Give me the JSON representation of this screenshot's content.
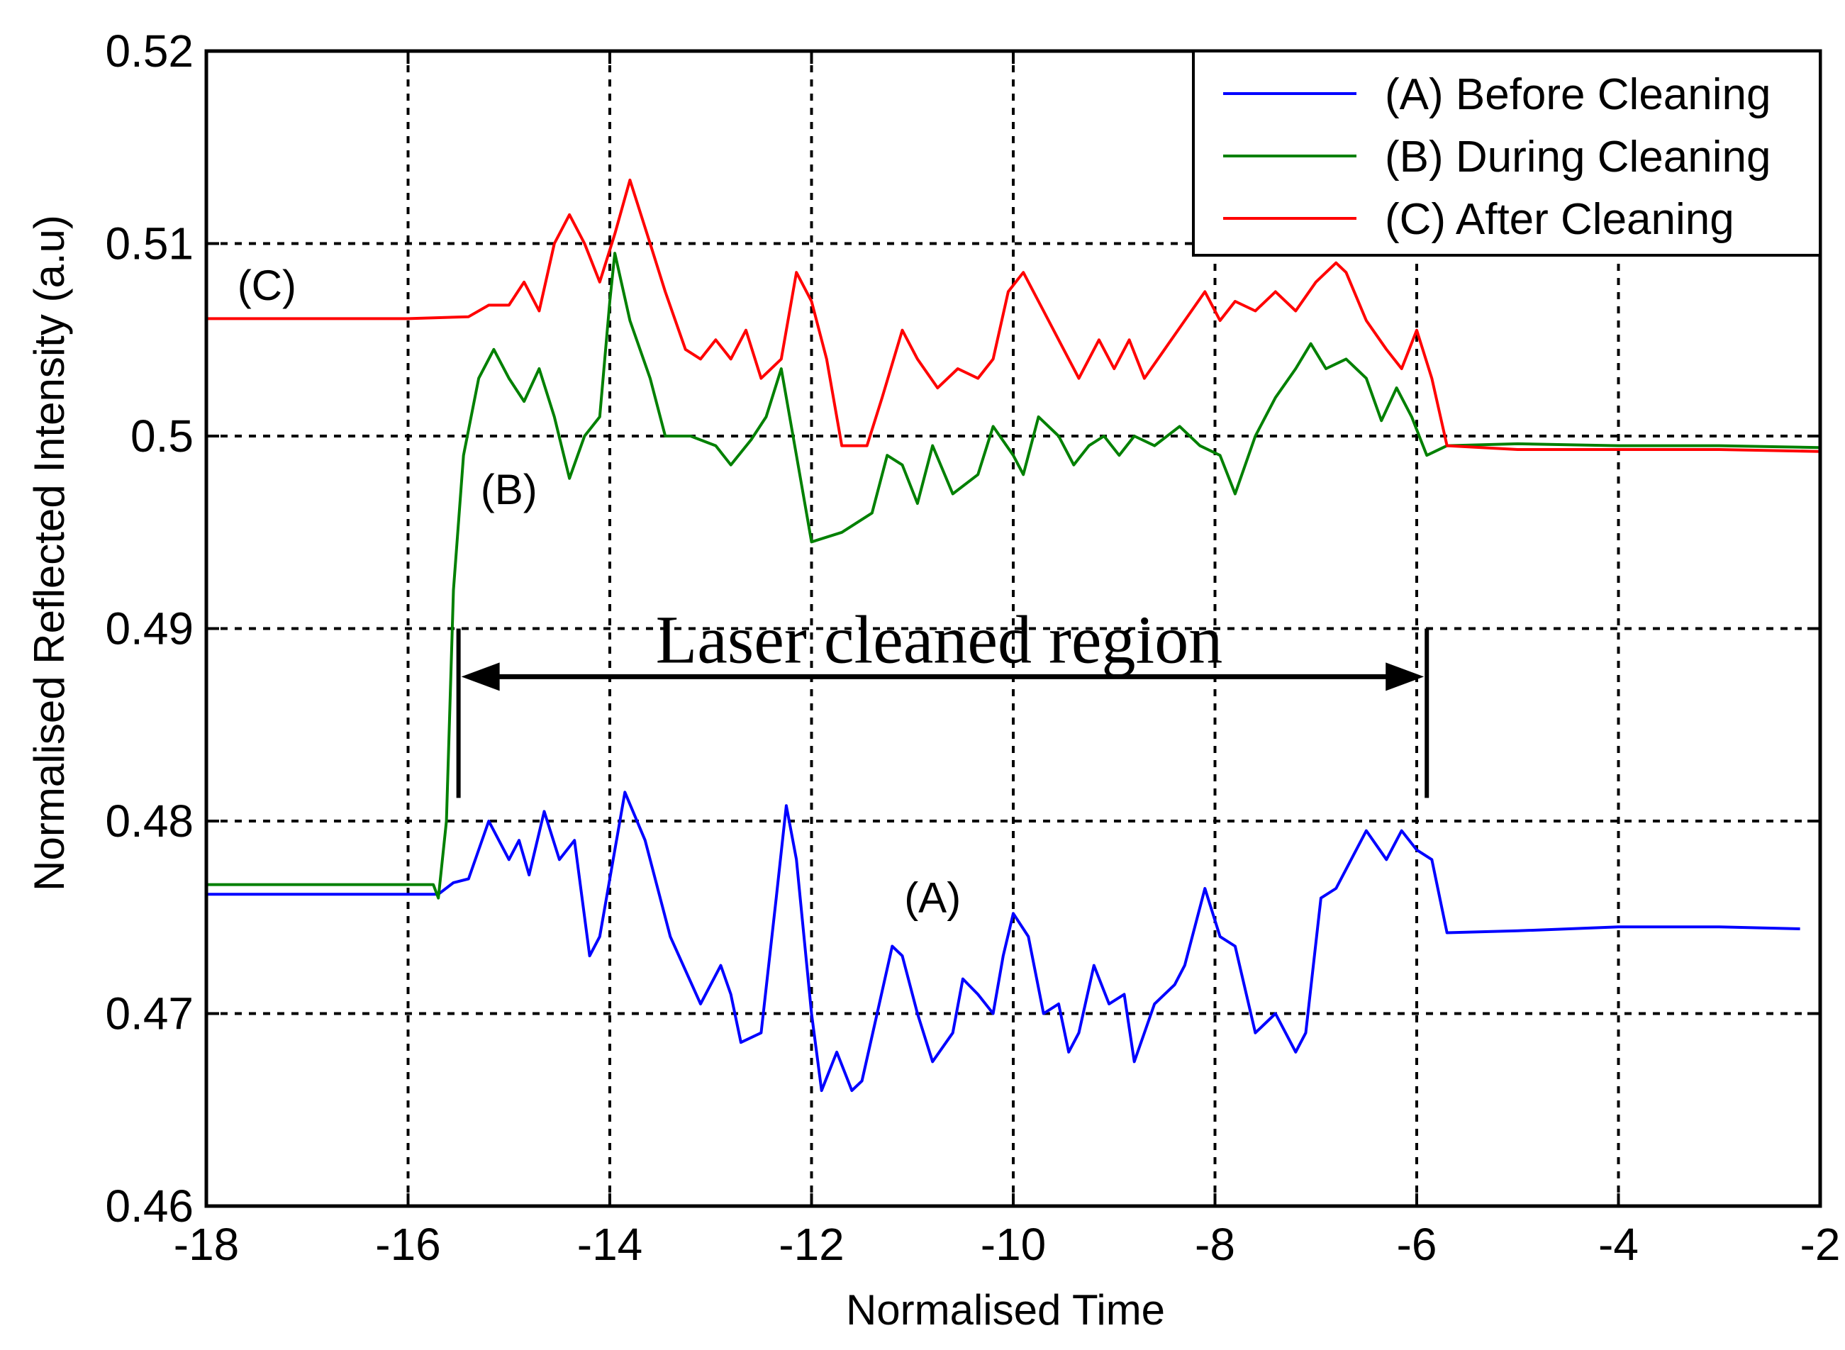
{
  "chart_data": {
    "type": "line",
    "title": "",
    "xlabel": "Normalised Time",
    "ylabel": "Normalised Reflected Intensity  (a.u)",
    "xlim": [
      -18,
      -2
    ],
    "ylim": [
      0.46,
      0.52
    ],
    "grid": true,
    "legend_position": "top-right",
    "x_ticks": [
      -18,
      -16,
      -14,
      -12,
      -10,
      -8,
      -6,
      -4,
      -2
    ],
    "x_tick_labels": [
      "-18",
      "-16",
      "-14",
      "-12",
      "-10",
      "-8",
      "-6",
      "-4",
      "-2"
    ],
    "y_ticks": [
      0.46,
      0.47,
      0.48,
      0.49,
      0.5,
      0.51,
      0.52
    ],
    "y_tick_labels": [
      "0.46",
      "0.47",
      "0.48",
      "0.49",
      "0.5",
      "0.51",
      "0.52"
    ],
    "series": [
      {
        "name": "(A) Before Cleaning",
        "tag": "(A)",
        "color": "#0000ff",
        "points": [
          [
            -18,
            0.4762
          ],
          [
            -17,
            0.4762
          ],
          [
            -16,
            0.4762
          ],
          [
            -15.7,
            0.4762
          ],
          [
            -15.55,
            0.4768
          ],
          [
            -15.4,
            0.477
          ],
          [
            -15.2,
            0.48
          ],
          [
            -15.0,
            0.478
          ],
          [
            -14.9,
            0.479
          ],
          [
            -14.8,
            0.4772
          ],
          [
            -14.65,
            0.4805
          ],
          [
            -14.5,
            0.478
          ],
          [
            -14.35,
            0.479
          ],
          [
            -14.2,
            0.473
          ],
          [
            -14.1,
            0.474
          ],
          [
            -14.0,
            0.477
          ],
          [
            -13.85,
            0.4815
          ],
          [
            -13.65,
            0.479
          ],
          [
            -13.4,
            0.474
          ],
          [
            -13.1,
            0.4705
          ],
          [
            -12.9,
            0.4725
          ],
          [
            -12.8,
            0.471
          ],
          [
            -12.7,
            0.4685
          ],
          [
            -12.5,
            0.469
          ],
          [
            -12.35,
            0.476
          ],
          [
            -12.25,
            0.4808
          ],
          [
            -12.15,
            0.478
          ],
          [
            -12.0,
            0.47
          ],
          [
            -11.9,
            0.466
          ],
          [
            -11.75,
            0.468
          ],
          [
            -11.6,
            0.466
          ],
          [
            -11.5,
            0.4665
          ],
          [
            -11.35,
            0.47
          ],
          [
            -11.2,
            0.4735
          ],
          [
            -11.1,
            0.473
          ],
          [
            -10.95,
            0.47
          ],
          [
            -10.8,
            0.4675
          ],
          [
            -10.6,
            0.469
          ],
          [
            -10.5,
            0.4718
          ],
          [
            -10.35,
            0.471
          ],
          [
            -10.2,
            0.47
          ],
          [
            -10.1,
            0.473
          ],
          [
            -10.0,
            0.4752
          ],
          [
            -9.85,
            0.474
          ],
          [
            -9.7,
            0.47
          ],
          [
            -9.55,
            0.4705
          ],
          [
            -9.45,
            0.468
          ],
          [
            -9.35,
            0.469
          ],
          [
            -9.2,
            0.4725
          ],
          [
            -9.05,
            0.4705
          ],
          [
            -8.9,
            0.471
          ],
          [
            -8.8,
            0.4675
          ],
          [
            -8.6,
            0.4705
          ],
          [
            -8.4,
            0.4715
          ],
          [
            -8.3,
            0.4725
          ],
          [
            -8.1,
            0.4765
          ],
          [
            -7.95,
            0.474
          ],
          [
            -7.8,
            0.4735
          ],
          [
            -7.6,
            0.469
          ],
          [
            -7.4,
            0.47
          ],
          [
            -7.2,
            0.468
          ],
          [
            -7.1,
            0.469
          ],
          [
            -6.95,
            0.476
          ],
          [
            -6.8,
            0.4765
          ],
          [
            -6.7,
            0.4775
          ],
          [
            -6.5,
            0.4795
          ],
          [
            -6.3,
            0.478
          ],
          [
            -6.15,
            0.4795
          ],
          [
            -6.0,
            0.4785
          ],
          [
            -5.85,
            0.478
          ],
          [
            -5.7,
            0.4742
          ],
          [
            -5.0,
            0.4743
          ],
          [
            -4.0,
            0.4745
          ],
          [
            -3.0,
            0.4745
          ],
          [
            -2.2,
            0.4744
          ]
        ]
      },
      {
        "name": "(B) During Cleaning",
        "tag": "(B)",
        "color": "#008000",
        "points": [
          [
            -18,
            0.4767
          ],
          [
            -17,
            0.4767
          ],
          [
            -16,
            0.4767
          ],
          [
            -15.75,
            0.4767
          ],
          [
            -15.7,
            0.476
          ],
          [
            -15.62,
            0.48
          ],
          [
            -15.55,
            0.492
          ],
          [
            -15.45,
            0.499
          ],
          [
            -15.3,
            0.503
          ],
          [
            -15.15,
            0.5045
          ],
          [
            -15.0,
            0.503
          ],
          [
            -14.85,
            0.5018
          ],
          [
            -14.7,
            0.5035
          ],
          [
            -14.55,
            0.501
          ],
          [
            -14.4,
            0.4978
          ],
          [
            -14.25,
            0.5
          ],
          [
            -14.1,
            0.501
          ],
          [
            -14.0,
            0.507
          ],
          [
            -13.95,
            0.5095
          ],
          [
            -13.8,
            0.506
          ],
          [
            -13.6,
            0.503
          ],
          [
            -13.45,
            0.5
          ],
          [
            -13.2,
            0.5
          ],
          [
            -12.95,
            0.4995
          ],
          [
            -12.8,
            0.4985
          ],
          [
            -12.6,
            0.4998
          ],
          [
            -12.45,
            0.501
          ],
          [
            -12.3,
            0.5035
          ],
          [
            -12.15,
            0.499
          ],
          [
            -12.0,
            0.4945
          ],
          [
            -11.7,
            0.495
          ],
          [
            -11.4,
            0.496
          ],
          [
            -11.25,
            0.499
          ],
          [
            -11.1,
            0.4985
          ],
          [
            -10.95,
            0.4965
          ],
          [
            -10.8,
            0.4995
          ],
          [
            -10.6,
            0.497
          ],
          [
            -10.35,
            0.498
          ],
          [
            -10.2,
            0.5005
          ],
          [
            -10.0,
            0.499
          ],
          [
            -9.9,
            0.498
          ],
          [
            -9.75,
            0.501
          ],
          [
            -9.55,
            0.5
          ],
          [
            -9.4,
            0.4985
          ],
          [
            -9.25,
            0.4995
          ],
          [
            -9.1,
            0.5
          ],
          [
            -8.95,
            0.499
          ],
          [
            -8.8,
            0.5
          ],
          [
            -8.6,
            0.4995
          ],
          [
            -8.35,
            0.5005
          ],
          [
            -8.15,
            0.4995
          ],
          [
            -7.95,
            0.499
          ],
          [
            -7.8,
            0.497
          ],
          [
            -7.6,
            0.5
          ],
          [
            -7.4,
            0.502
          ],
          [
            -7.2,
            0.5035
          ],
          [
            -7.05,
            0.5048
          ],
          [
            -6.9,
            0.5035
          ],
          [
            -6.7,
            0.504
          ],
          [
            -6.5,
            0.503
          ],
          [
            -6.35,
            0.5008
          ],
          [
            -6.2,
            0.5025
          ],
          [
            -6.05,
            0.501
          ],
          [
            -5.9,
            0.499
          ],
          [
            -5.7,
            0.4995
          ],
          [
            -5.0,
            0.4996
          ],
          [
            -4.0,
            0.4995
          ],
          [
            -3.0,
            0.4995
          ],
          [
            -2.0,
            0.4994
          ]
        ]
      },
      {
        "name": "(C) After Cleaning",
        "tag": "(C)",
        "color": "#ff0000",
        "points": [
          [
            -18,
            0.5061
          ],
          [
            -17,
            0.5061
          ],
          [
            -16,
            0.5061
          ],
          [
            -15.4,
            0.5062
          ],
          [
            -15.2,
            0.5068
          ],
          [
            -15.0,
            0.5068
          ],
          [
            -14.85,
            0.508
          ],
          [
            -14.7,
            0.5065
          ],
          [
            -14.55,
            0.51
          ],
          [
            -14.4,
            0.5115
          ],
          [
            -14.25,
            0.51
          ],
          [
            -14.1,
            0.508
          ],
          [
            -13.95,
            0.5105
          ],
          [
            -13.8,
            0.5133
          ],
          [
            -13.6,
            0.51
          ],
          [
            -13.45,
            0.5075
          ],
          [
            -13.25,
            0.5045
          ],
          [
            -13.1,
            0.504
          ],
          [
            -12.95,
            0.505
          ],
          [
            -12.8,
            0.504
          ],
          [
            -12.65,
            0.5055
          ],
          [
            -12.5,
            0.503
          ],
          [
            -12.3,
            0.504
          ],
          [
            -12.15,
            0.5085
          ],
          [
            -12.0,
            0.507
          ],
          [
            -11.85,
            0.504
          ],
          [
            -11.7,
            0.4995
          ],
          [
            -11.45,
            0.4995
          ],
          [
            -11.3,
            0.502
          ],
          [
            -11.1,
            0.5055
          ],
          [
            -10.95,
            0.504
          ],
          [
            -10.75,
            0.5025
          ],
          [
            -10.55,
            0.5035
          ],
          [
            -10.35,
            0.503
          ],
          [
            -10.2,
            0.504
          ],
          [
            -10.05,
            0.5075
          ],
          [
            -9.9,
            0.5085
          ],
          [
            -9.7,
            0.5065
          ],
          [
            -9.5,
            0.5045
          ],
          [
            -9.35,
            0.503
          ],
          [
            -9.15,
            0.505
          ],
          [
            -9.0,
            0.5035
          ],
          [
            -8.85,
            0.505
          ],
          [
            -8.7,
            0.503
          ],
          [
            -8.5,
            0.5045
          ],
          [
            -8.3,
            0.506
          ],
          [
            -8.1,
            0.5075
          ],
          [
            -7.95,
            0.506
          ],
          [
            -7.8,
            0.507
          ],
          [
            -7.6,
            0.5065
          ],
          [
            -7.4,
            0.5075
          ],
          [
            -7.2,
            0.5065
          ],
          [
            -7.0,
            0.508
          ],
          [
            -6.8,
            0.509
          ],
          [
            -6.7,
            0.5085
          ],
          [
            -6.5,
            0.506
          ],
          [
            -6.3,
            0.5045
          ],
          [
            -6.15,
            0.5035
          ],
          [
            -6.0,
            0.5055
          ],
          [
            -5.85,
            0.503
          ],
          [
            -5.7,
            0.4995
          ],
          [
            -5.0,
            0.4993
          ],
          [
            -4.0,
            0.4993
          ],
          [
            -3.0,
            0.4993
          ],
          [
            -2.0,
            0.4992
          ]
        ]
      }
    ],
    "annotations": {
      "region_label": "Laser cleaned region",
      "region_start": -15.5,
      "region_end": -5.9,
      "region_arrow_y": 0.4875,
      "region_bar_top": 0.49,
      "region_bar_bottom": 0.4812,
      "series_tags": [
        {
          "text": "(C)",
          "x": -17.4,
          "y": 0.5078
        },
        {
          "text": "(B)",
          "x": -15.0,
          "y": 0.4972
        },
        {
          "text": "(A)",
          "x": -10.8,
          "y": 0.476
        }
      ]
    }
  }
}
